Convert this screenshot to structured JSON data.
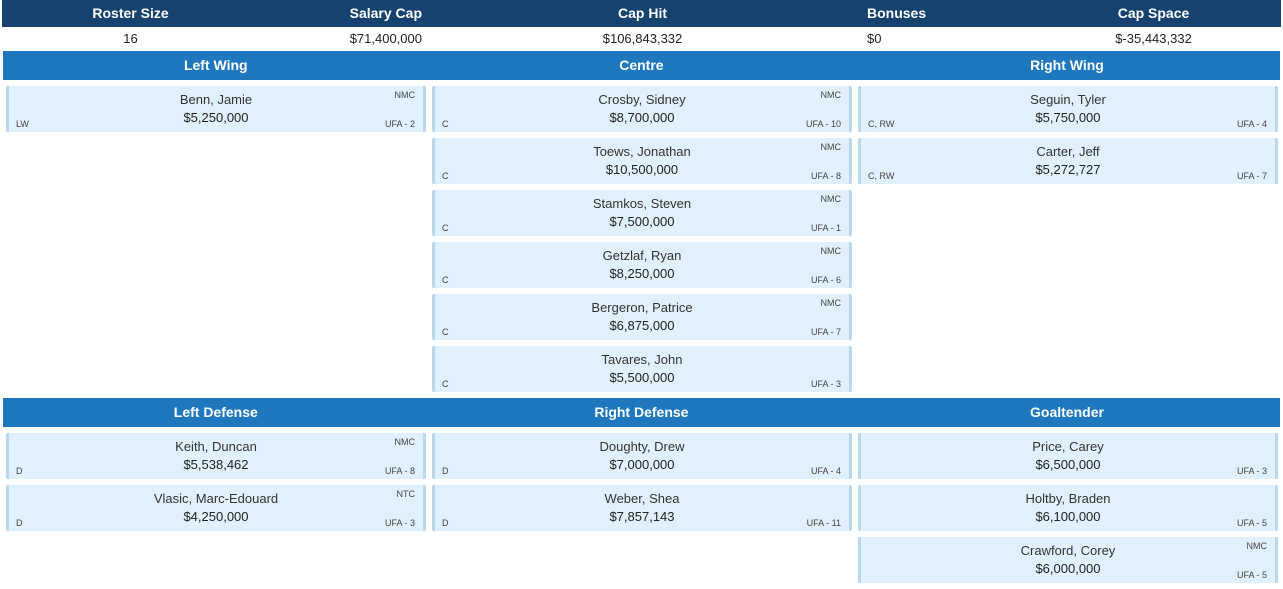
{
  "summary": {
    "headers": {
      "roster": "Roster Size",
      "cap": "Salary Cap",
      "hit": "Cap Hit",
      "bonuses": "Bonuses",
      "space": "Cap Space"
    },
    "values": {
      "roster": "16",
      "cap": "$71,400,000",
      "hit": "$106,843,332",
      "bonuses": "$0",
      "space": "$-35,443,332"
    }
  },
  "forwards": {
    "titles": [
      "Left Wing",
      "Centre",
      "Right Wing"
    ],
    "left_wing": [
      {
        "name": "Benn, Jamie",
        "salary": "$5,250,000",
        "pos": "LW",
        "flag": "NMC",
        "fa": "UFA - 2"
      }
    ],
    "centre": [
      {
        "name": "Crosby, Sidney",
        "salary": "$8,700,000",
        "pos": "C",
        "flag": "NMC",
        "fa": "UFA - 10"
      },
      {
        "name": "Toews, Jonathan",
        "salary": "$10,500,000",
        "pos": "C",
        "flag": "NMC",
        "fa": "UFA - 8"
      },
      {
        "name": "Stamkos, Steven",
        "salary": "$7,500,000",
        "pos": "C",
        "flag": "NMC",
        "fa": "UFA - 1"
      },
      {
        "name": "Getzlaf, Ryan",
        "salary": "$8,250,000",
        "pos": "C",
        "flag": "NMC",
        "fa": "UFA - 6"
      },
      {
        "name": "Bergeron, Patrice",
        "salary": "$6,875,000",
        "pos": "C",
        "flag": "NMC",
        "fa": "UFA - 7"
      },
      {
        "name": "Tavares, John",
        "salary": "$5,500,000",
        "pos": "C",
        "flag": "",
        "fa": "UFA - 3"
      }
    ],
    "right_wing": [
      {
        "name": "Seguin, Tyler",
        "salary": "$5,750,000",
        "pos": "C, RW",
        "flag": "",
        "fa": "UFA - 4"
      },
      {
        "name": "Carter, Jeff",
        "salary": "$5,272,727",
        "pos": "C, RW",
        "flag": "",
        "fa": "UFA - 7"
      }
    ]
  },
  "defense": {
    "titles": [
      "Left Defense",
      "Right Defense",
      "Goaltender"
    ],
    "left_defense": [
      {
        "name": "Keith, Duncan",
        "salary": "$5,538,462",
        "pos": "D",
        "flag": "NMC",
        "fa": "UFA - 8"
      },
      {
        "name": "Vlasic, Marc-Edouard",
        "salary": "$4,250,000",
        "pos": "D",
        "flag": "NTC",
        "fa": "UFA - 3"
      }
    ],
    "right_defense": [
      {
        "name": "Doughty, Drew",
        "salary": "$7,000,000",
        "pos": "D",
        "flag": "",
        "fa": "UFA - 4"
      },
      {
        "name": "Weber, Shea",
        "salary": "$7,857,143",
        "pos": "D",
        "flag": "",
        "fa": "UFA - 11"
      }
    ],
    "goaltender": [
      {
        "name": "Price, Carey",
        "salary": "$6,500,000",
        "pos": "",
        "flag": "",
        "fa": "UFA - 3"
      },
      {
        "name": "Holtby, Braden",
        "salary": "$6,100,000",
        "pos": "",
        "flag": "",
        "fa": "UFA - 5"
      },
      {
        "name": "Crawford, Corey",
        "salary": "$6,000,000",
        "pos": "",
        "flag": "NMC",
        "fa": "UFA - 5"
      }
    ]
  }
}
